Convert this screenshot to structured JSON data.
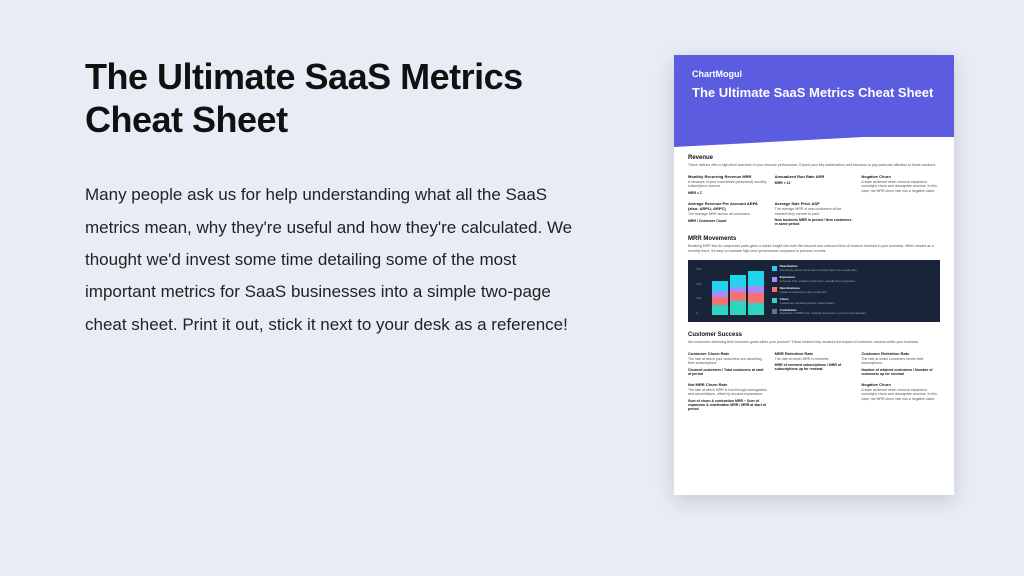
{
  "page": {
    "background": "#e8edf5",
    "title": "The Ultimate SaaS Metrics Cheat Sheet",
    "body": "Many people ask us for help understanding what all the SaaS metrics mean, why they're useful and how they're calculated. We thought we'd invest some time detailing some of the most important metrics for SaaS businesses into a simple two-page cheat sheet. Print it out, stick it next to your desk as a reference!"
  },
  "preview": {
    "header_color": "#5b5ce0",
    "brand": "ChartMogul",
    "title": "The Ultimate SaaS Metrics Cheat Sheet",
    "revenue": {
      "title": "Revenue",
      "desc": "These metrics offer a high-level overview of your revenue performance. Expect your key stakeholders and investors to pay particular attention to these numbers.",
      "metrics": [
        {
          "title": "Monthly Recurring Revenue MRR",
          "desc": "A measure of your normalized (amortized) monthly subscription revenue.",
          "formula": "MRR = Σ"
        },
        {
          "title": "Annualized Run Rate ARR",
          "desc": "",
          "formula": "MRR × 12"
        },
        {
          "title": "Negative Churn",
          "desc": "A state achieved when revenue expansion outweighs churn and downgrade revenue. In this case, net MRR churn rate has a negative value."
        },
        {
          "title": "Average Revenue Per Account ARPA (also: ARPU, ARPC)",
          "desc": "The average MRR across all customers.",
          "formula": "MRR / Customer Count"
        },
        {
          "title": "Average Sale Price ASP",
          "desc": "The average MRR of new customers at the moment they convert to paid.",
          "formula": "New business MRR in period / New customers in same period"
        },
        {
          "title": "",
          "desc": ""
        }
      ]
    },
    "movements": {
      "title": "MRR Movements",
      "desc": "Breaking MRR into its component parts gives a useful insight into both the inbound and outbound flow of revenue involved in your business. When viewed as a monthly trend, it's easy to evaluate high-level performance compared to previous months.",
      "chart": {
        "background": "#1a2438",
        "axis_labels": [
          "6.0k",
          "4.0k",
          "2.0k",
          "0"
        ],
        "bars": [
          [
            {
              "h": 10,
              "c": "#2dd4bf"
            },
            {
              "h": 8,
              "c": "#f87171"
            },
            {
              "h": 6,
              "c": "#a78bfa"
            },
            {
              "h": 10,
              "c": "#22d3ee"
            }
          ],
          [
            {
              "h": 14,
              "c": "#2dd4bf"
            },
            {
              "h": 9,
              "c": "#f87171"
            },
            {
              "h": 5,
              "c": "#a78bfa"
            },
            {
              "h": 12,
              "c": "#22d3ee"
            }
          ],
          [
            {
              "h": 12,
              "c": "#2dd4bf"
            },
            {
              "h": 10,
              "c": "#f87171"
            },
            {
              "h": 7,
              "c": "#a78bfa"
            },
            {
              "h": 15,
              "c": "#22d3ee"
            }
          ]
        ],
        "legend": [
          {
            "color": "#22d3ee",
            "title": "Reactivation",
            "sub": "Previously active customers moving back onto a paid plan."
          },
          {
            "color": "#a78bfa",
            "title": "Expansion",
            "sub": "Increase from existing customers, usually from upgrades."
          },
          {
            "color": "#f87171",
            "title": "New Business",
            "sub": "Leads converting to new customers."
          },
          {
            "color": "#2dd4bf",
            "title": "Churn",
            "sub": "Customers canceling active subscriptions."
          },
          {
            "color": "#64748b",
            "title": "Contraction",
            "sub": "Decrease in MRR from existing customers e.g. from downgrades."
          }
        ]
      }
    },
    "success": {
      "title": "Customer Success",
      "desc": "Are customers achieving their business goals within your product? These metrics help measure the impact of customer success within your business.",
      "metrics": [
        {
          "title": "Customer Churn Rate",
          "desc": "The rate at which your customers are canceling their subscriptions.",
          "formula": "Churned customers / Total customers at start of period"
        },
        {
          "title": "MRR Retention Rate",
          "desc": "The rate at which MRR is renewed.",
          "formula": "MRR of renewed subscriptions / MRR of subscriptions up for renewal"
        },
        {
          "title": "Customer Retention Rate",
          "desc": "The rate at which customers renew their subscriptions.",
          "formula": "Number of retained customers / Number of customers up for renewal"
        },
        {
          "title": "Net MRR Churn Rate",
          "desc": "The rate at which MRR is lost through downgrades and cancellations, offset by account expansions.",
          "formula": "Sum of churn & contraction MRR − Sum of expansion & reactivation MRR / MRR at start of period"
        },
        {
          "title": "",
          "desc": ""
        },
        {
          "title": "Negative Churn",
          "desc": "A state achieved when revenue expansion outweighs churn and downgrade revenue. In this case, net MRR churn rate has a negative value."
        }
      ]
    }
  }
}
